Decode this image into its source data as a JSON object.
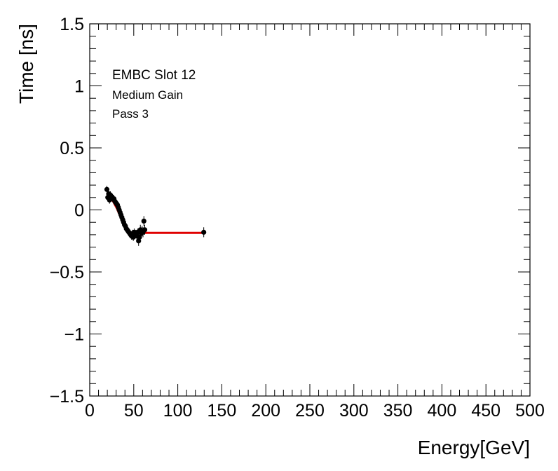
{
  "chart_data": {
    "type": "scatter",
    "xlabel": "Energy[GeV]",
    "ylabel": "Time [ns]",
    "xlim": [
      0,
      500
    ],
    "ylim": [
      -1.5,
      1.5
    ],
    "x_ticks": [
      0,
      50,
      100,
      150,
      200,
      250,
      300,
      350,
      400,
      450,
      500
    ],
    "x_tick_labels": [
      "0",
      "50",
      "100",
      "150",
      "200",
      "250",
      "300",
      "350",
      "400",
      "450",
      "500"
    ],
    "y_ticks": [
      -1.5,
      -1,
      -0.5,
      0,
      0.5,
      1,
      1.5
    ],
    "y_tick_labels": [
      "−1.5",
      "−1",
      "−0.5",
      "0",
      "0.5",
      "1",
      "1.5"
    ],
    "grid": false,
    "annotations": [
      "EMBC Slot 12",
      "Medium Gain",
      "Pass 3"
    ],
    "marker_color": "#000000",
    "fit_color": "#e00000",
    "points": [
      {
        "x": 19.5,
        "y": 0.165,
        "err": 0.03
      },
      {
        "x": 20.5,
        "y": 0.1,
        "err": 0.03
      },
      {
        "x": 21.5,
        "y": 0.13,
        "err": 0.03
      },
      {
        "x": 22.5,
        "y": 0.08,
        "err": 0.03
      },
      {
        "x": 23.5,
        "y": 0.12,
        "err": 0.03
      },
      {
        "x": 24.5,
        "y": 0.11,
        "err": 0.03
      },
      {
        "x": 25.5,
        "y": 0.1,
        "err": 0.03
      },
      {
        "x": 26.5,
        "y": 0.09,
        "err": 0.03
      },
      {
        "x": 27.5,
        "y": 0.09,
        "err": 0.03
      },
      {
        "x": 28.5,
        "y": 0.07,
        "err": 0.03
      },
      {
        "x": 29.5,
        "y": 0.06,
        "err": 0.03
      },
      {
        "x": 30.5,
        "y": 0.05,
        "err": 0.03
      },
      {
        "x": 31.5,
        "y": 0.04,
        "err": 0.03
      },
      {
        "x": 32.5,
        "y": 0.02,
        "err": 0.03
      },
      {
        "x": 33.5,
        "y": 0.0,
        "err": 0.03
      },
      {
        "x": 34.5,
        "y": -0.02,
        "err": 0.03
      },
      {
        "x": 35.5,
        "y": -0.04,
        "err": 0.03
      },
      {
        "x": 36.5,
        "y": -0.06,
        "err": 0.03
      },
      {
        "x": 37.5,
        "y": -0.08,
        "err": 0.03
      },
      {
        "x": 38.5,
        "y": -0.1,
        "err": 0.03
      },
      {
        "x": 39.5,
        "y": -0.12,
        "err": 0.03
      },
      {
        "x": 40.5,
        "y": -0.13,
        "err": 0.03
      },
      {
        "x": 41.5,
        "y": -0.15,
        "err": 0.03
      },
      {
        "x": 42.5,
        "y": -0.16,
        "err": 0.03
      },
      {
        "x": 43.5,
        "y": -0.17,
        "err": 0.03
      },
      {
        "x": 44.5,
        "y": -0.18,
        "err": 0.03
      },
      {
        "x": 45.5,
        "y": -0.19,
        "err": 0.03
      },
      {
        "x": 46.5,
        "y": -0.2,
        "err": 0.03
      },
      {
        "x": 47.5,
        "y": -0.21,
        "err": 0.03
      },
      {
        "x": 48.5,
        "y": -0.19,
        "err": 0.03
      },
      {
        "x": 49.5,
        "y": -0.22,
        "err": 0.03
      },
      {
        "x": 50.5,
        "y": -0.18,
        "err": 0.03
      },
      {
        "x": 51.5,
        "y": -0.2,
        "err": 0.03
      },
      {
        "x": 52.5,
        "y": -0.19,
        "err": 0.03
      },
      {
        "x": 53.5,
        "y": -0.21,
        "err": 0.03
      },
      {
        "x": 54.5,
        "y": -0.18,
        "err": 0.03
      },
      {
        "x": 55.5,
        "y": -0.25,
        "err": 0.04
      },
      {
        "x": 56.5,
        "y": -0.22,
        "err": 0.04
      },
      {
        "x": 57.5,
        "y": -0.16,
        "err": 0.04
      },
      {
        "x": 58.5,
        "y": -0.19,
        "err": 0.04
      },
      {
        "x": 59.5,
        "y": -0.17,
        "err": 0.04
      },
      {
        "x": 60.5,
        "y": -0.18,
        "err": 0.04
      },
      {
        "x": 61.5,
        "y": -0.09,
        "err": 0.04
      },
      {
        "x": 62.5,
        "y": -0.16,
        "err": 0.04
      },
      {
        "x": 129.5,
        "y": -0.18,
        "err": 0.04
      }
    ],
    "fit": {
      "x": [
        19.5,
        22,
        25,
        28,
        31,
        34,
        37,
        40,
        43,
        46,
        48,
        50,
        129.5
      ],
      "y": [
        0.14,
        0.12,
        0.09,
        0.05,
        0.01,
        -0.04,
        -0.09,
        -0.13,
        -0.16,
        -0.18,
        -0.185,
        -0.185,
        -0.185
      ]
    }
  }
}
